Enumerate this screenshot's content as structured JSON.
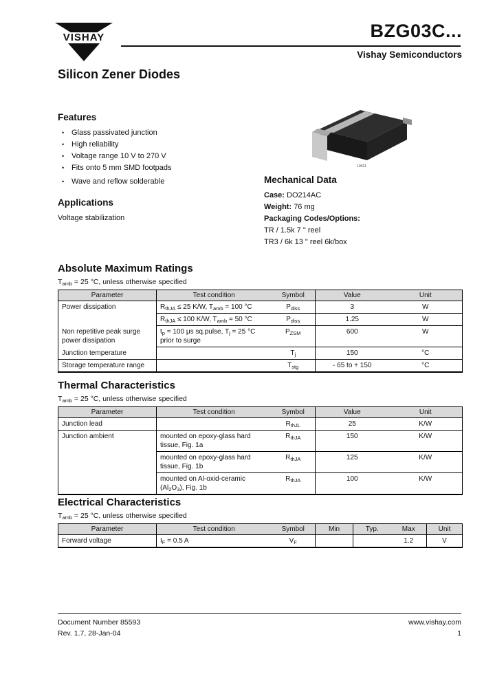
{
  "header": {
    "brand": "VISHAY",
    "part_number": "BZG03C...",
    "division": "Vishay Semiconductors",
    "product_title": "Silicon Zener Diodes"
  },
  "features": {
    "heading": "Features",
    "bullet": "•",
    "items": [
      "Glass passivated junction",
      "High reliability",
      "Voltage range 10 V to 270 V",
      "Fits onto 5 mm SMD footpads",
      "Wave and reflow solderable"
    ]
  },
  "applications": {
    "heading": "Applications",
    "text": "Voltage stabilization"
  },
  "package": {
    "photo_id": "19011"
  },
  "mechanical": {
    "heading": "Mechanical Data",
    "case_label": "Case:",
    "case_value": "DO214AC",
    "weight_label": "Weight:",
    "weight_value": "76 mg",
    "packaging_label": "Packaging Codes/Options:",
    "packaging_options": [
      "TR / 1.5k 7 \" reel",
      "TR3 / 6k 13 \" reel 6k/box"
    ]
  },
  "abs_max": {
    "heading": "Absolute Maximum Ratings",
    "note": "T_{amb} = 25 °C, unless otherwise specified",
    "columns": [
      "Parameter",
      "Test condition",
      "Symbol",
      "Value",
      "Unit"
    ],
    "rows": [
      {
        "param": "Power dissipation",
        "test": "R_{thJA} ≤ 25 K/W, T_{amb} = 100 °C",
        "symbol": "P_{diss}",
        "value": "3",
        "unit": "W"
      },
      {
        "param": "",
        "test": "R_{thJA} ≤ 100 K/W, T_{amb} = 50 °C",
        "symbol": "P_{diss}",
        "value": "1.25",
        "unit": "W"
      },
      {
        "param": "Non repetitive peak surge power dissipation",
        "test": "t_{p} = 100 μs sq.pulse, T_{j} = 25 °C prior to surge",
        "symbol": "P_{ZSM}",
        "value": "600",
        "unit": "W"
      },
      {
        "param": "Junction temperature",
        "test": "",
        "symbol": "T_{j}",
        "value": "150",
        "unit": "°C"
      },
      {
        "param": "Storage temperature range",
        "test": "",
        "symbol": "T_{stg}",
        "value": "- 65 to + 150",
        "unit": "°C"
      }
    ]
  },
  "thermal": {
    "heading": "Thermal Characteristics",
    "note": "T_{amb} = 25 °C, unless otherwise specified",
    "columns": [
      "Parameter",
      "Test condition",
      "Symbol",
      "Value",
      "Unit"
    ],
    "rows": [
      {
        "param": "Junction lead",
        "test": "",
        "symbol": "R_{thJL}",
        "value": "25",
        "unit": "K/W"
      },
      {
        "param": "Junction ambient",
        "test": "mounted on epoxy-glass hard tissue, Fig. 1a",
        "symbol": "R_{thJA}",
        "value": "150",
        "unit": "K/W"
      },
      {
        "param": "",
        "test": "mounted on epoxy-glass hard tissue, Fig. 1b",
        "symbol": "R_{thJA}",
        "value": "125",
        "unit": "K/W"
      },
      {
        "param": "",
        "test": "mounted on Al-oxid-ceramic (Al_{2}O_{3}), Fig. 1b",
        "symbol": "R_{thJA}",
        "value": "100",
        "unit": "K/W"
      }
    ]
  },
  "electrical": {
    "heading": "Electrical Characteristics",
    "note": "T_{amb} = 25 °C, unless otherwise specified",
    "columns": [
      "Parameter",
      "Test condition",
      "Symbol",
      "Min",
      "Typ.",
      "Max",
      "Unit"
    ],
    "rows": [
      {
        "param": "Forward voltage",
        "test": "I_{F} = 0.5 A",
        "symbol": "V_{F}",
        "min": "",
        "typ": "",
        "max": "1.2",
        "unit": "V"
      }
    ]
  },
  "footer": {
    "doc_number": "Document Number 85593",
    "revision": "Rev. 1.7, 28-Jan-04",
    "website": "www.vishay.com",
    "page_number": "1"
  }
}
